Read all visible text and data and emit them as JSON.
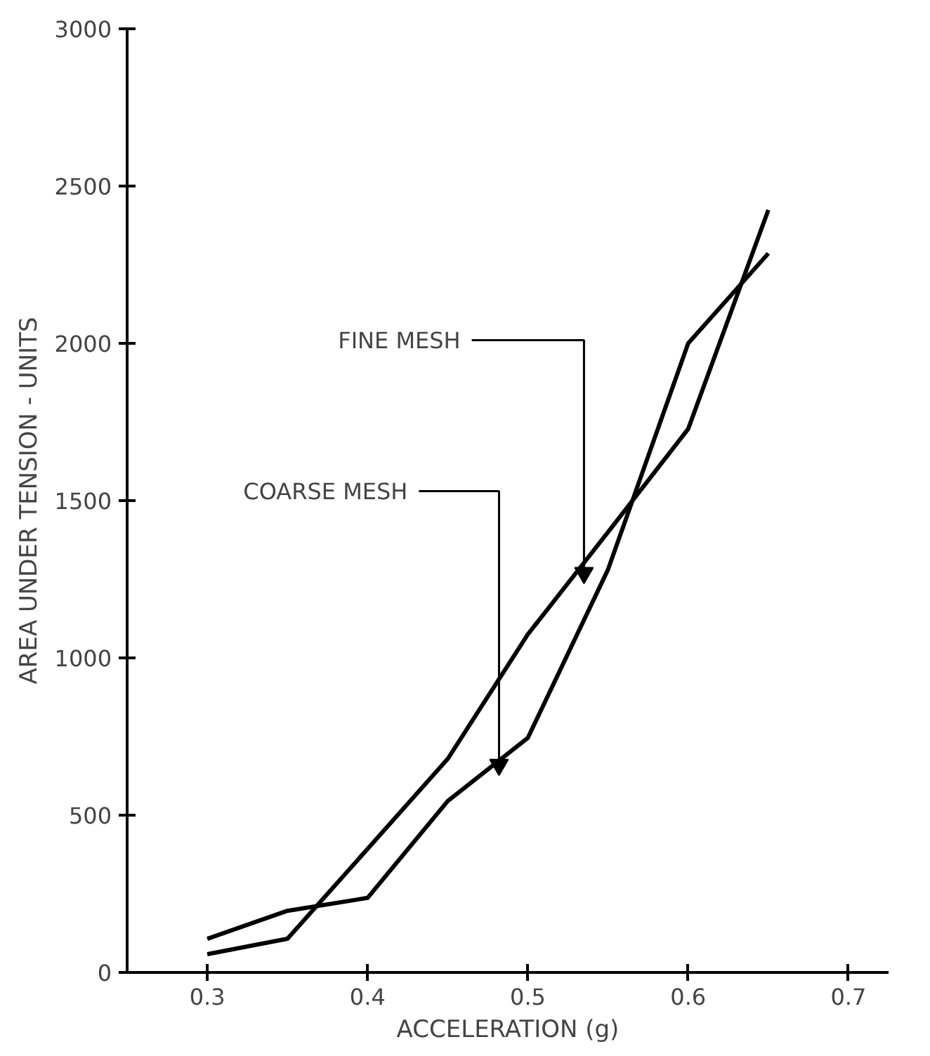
{
  "chart_data": {
    "type": "line",
    "xlabel": "ACCELERATION (g)",
    "ylabel": "AREA UNDER TENSION - UNITS",
    "x": [
      0.3,
      0.35,
      0.4,
      0.45,
      0.5,
      0.55,
      0.6,
      0.65
    ],
    "series": [
      {
        "color": "#000000",
        "values": [
          58,
          107,
          393,
          679,
          1075,
          1400,
          1728,
          2424
        ]
      },
      {
        "color": "#000000",
        "values": [
          107,
          196,
          237,
          545,
          746,
          1281,
          2000,
          2286
        ]
      }
    ],
    "xlim": [
      0.25,
      0.725
    ],
    "ylim": [
      0,
      3000
    ],
    "xticks": [
      0.3,
      0.4,
      0.5,
      0.6,
      0.7
    ],
    "yticks": [
      0,
      500,
      1000,
      1500,
      2000,
      2500,
      3000
    ],
    "grid": false,
    "marker": "none",
    "line_style": "solid",
    "annotations": [
      {
        "text": "FINE MESH",
        "x": 0.535,
        "y": 1270
      },
      {
        "text": "COARSE MESH",
        "x": 0.482,
        "y": 660
      }
    ]
  }
}
